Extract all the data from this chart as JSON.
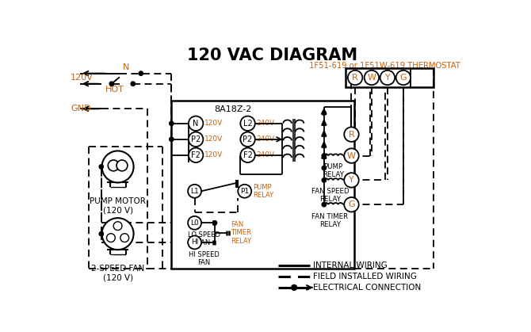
{
  "title": "120 VAC DIAGRAM",
  "subtitle": "1F51-619 or 1F51W-619 THERMOSTAT",
  "board_label": "8A18Z-2",
  "orange": "#c8600a",
  "black": "#000000",
  "white": "#ffffff",
  "pump_motor_label": "PUMP MOTOR\n(120 V)",
  "two_speed_fan_label": "2-SPEED FAN\n(120 V)",
  "pump_relay_label": "PUMP\nRELAY",
  "fan_speed_label": "FAN SPEED\nRELAY",
  "fan_timer_label": "FAN TIMER\nRELAY",
  "legend_items": [
    "INTERNAL WIRING",
    "FIELD INSTALLED WIRING",
    "ELECTRICAL CONNECTION"
  ],
  "left_terms": [
    "N",
    "P2",
    "F2"
  ],
  "right_terms": [
    "L2",
    "P2",
    "F2"
  ],
  "left_volts": [
    "120V",
    "120V",
    "120V"
  ],
  "right_volts": [
    "240V",
    "240V",
    "240V"
  ],
  "therm_terms": [
    "R",
    "W",
    "Y",
    "G"
  ]
}
